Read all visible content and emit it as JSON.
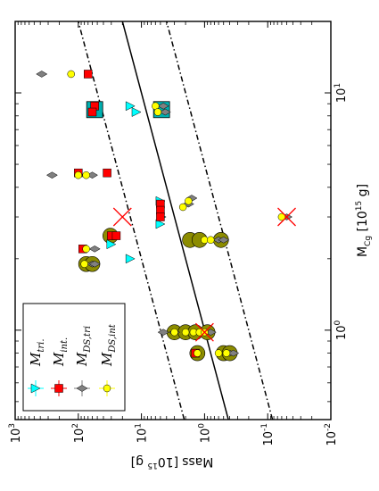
{
  "chart_data": {
    "type": "scatter",
    "title": "",
    "orientation": "rotated-90",
    "xlabel_main": "Mass",
    "xlabel_unit": "[10",
    "xlabel_exp": "15",
    "xlabel_tail": " g]",
    "ylabel_main": "M",
    "ylabel_sub": "Cg",
    "ylabel_unit": " [10",
    "ylabel_exp": "15",
    "ylabel_tail": " g]",
    "x_axis": {
      "scale": "log",
      "reversed": true,
      "lim": [
        1000,
        0.01
      ],
      "ticks": [
        {
          "value": 1000,
          "label_base": "10",
          "label_exp": "3"
        },
        {
          "value": 100,
          "label_base": "10",
          "label_exp": "2"
        },
        {
          "value": 10,
          "label_base": "10",
          "label_exp": "1"
        },
        {
          "value": 1,
          "label_base": "10",
          "label_exp": "0"
        },
        {
          "value": 0.1,
          "label_base": "10",
          "label_exp": "-1"
        },
        {
          "value": 0.01,
          "label_base": "10",
          "label_exp": "-2"
        }
      ]
    },
    "y_axis": {
      "scale": "log",
      "lim": [
        0.42,
        20
      ],
      "ticks": [
        {
          "value": 1,
          "label_base": "10",
          "label_exp": "0"
        },
        {
          "value": 10,
          "label_base": "10",
          "label_exp": "1"
        }
      ]
    },
    "lines": [
      {
        "style": "solid",
        "relation": "y = x",
        "color": "#000000"
      },
      {
        "style": "dashdot",
        "relation": "y = 5x",
        "color": "#000000"
      },
      {
        "style": "dashdot",
        "relation": "y = x / 5",
        "color": "#000000"
      }
    ],
    "highlight_colors": {
      "olive": "#8c8c00",
      "teal": "#00b0b0",
      "red_cross": "#ff0000"
    },
    "series": [
      {
        "name": "M_tri.",
        "marker": "triangle",
        "color": "#00ffff",
        "points": [
          [
            15,
            8.8
          ],
          [
            12,
            8.3
          ],
          [
            5,
            3.5
          ],
          [
            4.8,
            3.0
          ],
          [
            5,
            2.8
          ],
          [
            30,
            2.3
          ],
          [
            15,
            2.0
          ],
          [
            55,
            0.98
          ]
        ]
      },
      {
        "name": "M_int.",
        "marker": "square",
        "color": "#ff0000",
        "points": [
          [
            70,
            12.0
          ],
          [
            55,
            8.8
          ],
          [
            60,
            8.3
          ],
          [
            100,
            4.6
          ],
          [
            35,
            4.6
          ],
          [
            5,
            3.4
          ],
          [
            5,
            3.2
          ],
          [
            5,
            3.0
          ],
          [
            30,
            2.5
          ],
          [
            25,
            2.5
          ],
          [
            85,
            2.2
          ],
          [
            80,
            0.98
          ],
          [
            70,
            0.98
          ],
          [
            95,
            0.98
          ],
          [
            1.4,
            0.8
          ]
        ]
      },
      {
        "name": "M_DS,tri",
        "marker": "diamond",
        "color": "#808080",
        "points": [
          [
            380,
            12.0
          ],
          [
            4.5,
            8.8
          ],
          [
            4.2,
            8.3
          ],
          [
            260,
            4.5
          ],
          [
            60,
            4.5
          ],
          [
            1.6,
            3.6
          ],
          [
            1.8,
            3.4
          ],
          [
            0.05,
            3.0
          ],
          [
            0.6,
            2.4
          ],
          [
            0.5,
            2.4
          ],
          [
            55,
            2.2
          ],
          [
            60,
            1.9
          ],
          [
            55,
            1.9
          ],
          [
            4.5,
            0.98
          ],
          [
            3,
            0.98
          ],
          [
            1.2,
            0.98
          ],
          [
            0.8,
            0.98
          ],
          [
            0.4,
            0.8
          ],
          [
            0.35,
            0.8
          ]
        ]
      },
      {
        "name": "M_DS,int",
        "marker": "circle",
        "color": "#ffff00",
        "points": [
          [
            130,
            12.0
          ],
          [
            6,
            8.8
          ],
          [
            5.5,
            8.3
          ],
          [
            100,
            4.5
          ],
          [
            75,
            4.5
          ],
          [
            1.8,
            3.5
          ],
          [
            2.2,
            3.3
          ],
          [
            0.06,
            3.0
          ],
          [
            1.0,
            2.4
          ],
          [
            0.8,
            2.4
          ],
          [
            75,
            2.2
          ],
          [
            80,
            1.9
          ],
          [
            3,
            0.98
          ],
          [
            2,
            0.98
          ],
          [
            1.5,
            0.98
          ],
          [
            1.2,
            0.98
          ],
          [
            1.0,
            0.98
          ],
          [
            1.3,
            0.8
          ],
          [
            0.6,
            0.8
          ],
          [
            0.45,
            0.8
          ]
        ]
      }
    ],
    "highlights": [
      {
        "kind": "olive-circle",
        "points": [
          [
            31,
            2.5
          ],
          [
            1.7,
            2.4
          ],
          [
            1.2,
            2.4
          ],
          [
            0.55,
            2.4
          ],
          [
            75,
            1.9
          ],
          [
            60,
            1.9
          ],
          [
            70,
            0.98
          ],
          [
            55,
            0.98
          ],
          [
            3,
            0.98
          ],
          [
            2,
            0.98
          ],
          [
            1.4,
            0.98
          ],
          [
            0.9,
            0.98
          ],
          [
            1.3,
            0.8
          ],
          [
            0.5,
            0.8
          ],
          [
            0.4,
            0.8
          ]
        ]
      },
      {
        "kind": "teal-square",
        "points": [
          [
            55,
            8.5
          ],
          [
            4.8,
            8.5
          ]
        ]
      },
      {
        "kind": "red-cross",
        "points": [
          [
            20,
            3.0
          ],
          [
            0.05,
            3.0
          ],
          [
            60,
            0.98
          ],
          [
            1.0,
            0.98
          ]
        ]
      }
    ],
    "legend": {
      "placement": "lower-left",
      "entries": [
        {
          "label": "M_tri.",
          "text_main": "M",
          "text_sub": "tri."
        },
        {
          "label": "M_int.",
          "text_main": "M",
          "text_sub": "int."
        },
        {
          "label": "M_DS,tri",
          "text_main": "M",
          "text_sub": "DS,tri"
        },
        {
          "label": "M_DS,int",
          "text_main": "M",
          "text_sub": "DS,int"
        }
      ]
    }
  }
}
